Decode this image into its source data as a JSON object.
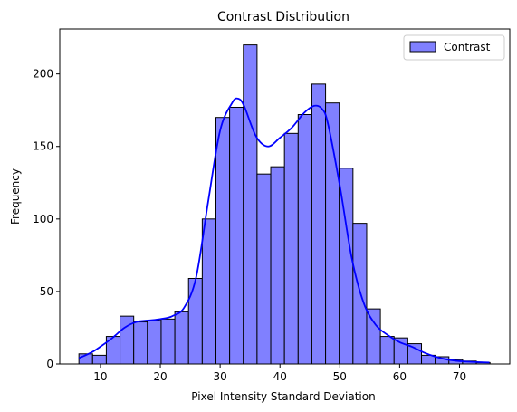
{
  "chart_data": {
    "type": "bar",
    "title": "Contrast Distribution",
    "xlabel": "Pixel Intensity Standard Deviation",
    "ylabel": "Frequency",
    "xlim": [
      3.2,
      78.4
    ],
    "ylim": [
      0,
      231
    ],
    "x_ticks": [
      10,
      20,
      30,
      40,
      50,
      60,
      70
    ],
    "y_ticks": [
      0,
      50,
      100,
      150,
      200
    ],
    "legend": {
      "entries": [
        "Contrast"
      ],
      "position": "top-right"
    },
    "colors": {
      "bar_fill": "#8080ff",
      "bar_edge": "#000000",
      "kde_line": "#0000ff"
    },
    "bin_width": 2.29,
    "bins": [
      {
        "x0": 6.4,
        "x1": 8.69,
        "count": 7
      },
      {
        "x0": 8.69,
        "x1": 10.98,
        "count": 6
      },
      {
        "x0": 10.98,
        "x1": 13.27,
        "count": 19
      },
      {
        "x0": 13.27,
        "x1": 15.56,
        "count": 33
      },
      {
        "x0": 15.56,
        "x1": 17.85,
        "count": 29
      },
      {
        "x0": 17.85,
        "x1": 20.14,
        "count": 30
      },
      {
        "x0": 20.14,
        "x1": 22.43,
        "count": 31
      },
      {
        "x0": 22.43,
        "x1": 24.72,
        "count": 36
      },
      {
        "x0": 24.72,
        "x1": 27.01,
        "count": 59
      },
      {
        "x0": 27.01,
        "x1": 29.3,
        "count": 100
      },
      {
        "x0": 29.3,
        "x1": 31.59,
        "count": 170
      },
      {
        "x0": 31.59,
        "x1": 33.88,
        "count": 177
      },
      {
        "x0": 33.88,
        "x1": 36.17,
        "count": 220
      },
      {
        "x0": 36.17,
        "x1": 38.46,
        "count": 131
      },
      {
        "x0": 38.46,
        "x1": 40.75,
        "count": 136
      },
      {
        "x0": 40.75,
        "x1": 43.04,
        "count": 159
      },
      {
        "x0": 43.04,
        "x1": 45.33,
        "count": 172
      },
      {
        "x0": 45.33,
        "x1": 47.62,
        "count": 193
      },
      {
        "x0": 47.62,
        "x1": 49.91,
        "count": 180
      },
      {
        "x0": 49.91,
        "x1": 52.2,
        "count": 135
      },
      {
        "x0": 52.2,
        "x1": 54.49,
        "count": 97
      },
      {
        "x0": 54.49,
        "x1": 56.78,
        "count": 38
      },
      {
        "x0": 56.78,
        "x1": 59.07,
        "count": 19
      },
      {
        "x0": 59.07,
        "x1": 61.36,
        "count": 18
      },
      {
        "x0": 61.36,
        "x1": 63.65,
        "count": 14
      },
      {
        "x0": 63.65,
        "x1": 65.94,
        "count": 6
      },
      {
        "x0": 65.94,
        "x1": 68.23,
        "count": 5
      },
      {
        "x0": 68.23,
        "x1": 70.52,
        "count": 3
      },
      {
        "x0": 70.52,
        "x1": 72.81,
        "count": 2
      },
      {
        "x0": 72.81,
        "x1": 75.1,
        "count": 1
      }
    ],
    "kde": {
      "x": [
        6.4,
        8.5,
        10,
        12,
        14,
        16,
        18,
        20,
        22,
        24,
        26,
        28,
        30,
        32,
        33,
        34,
        36,
        38,
        40,
        42,
        44,
        45.7,
        47,
        48,
        50,
        52,
        54,
        56,
        58,
        60,
        62,
        64,
        66,
        68,
        70,
        72,
        75
      ],
      "y": [
        4,
        8,
        12,
        18,
        25,
        29,
        30,
        31,
        33,
        39,
        60,
        112,
        161,
        180,
        183,
        178,
        157,
        150,
        156,
        163,
        173,
        178,
        176,
        166,
        123,
        73,
        42,
        27,
        20,
        15,
        12,
        8,
        5,
        3,
        2,
        1.5,
        1
      ]
    }
  }
}
